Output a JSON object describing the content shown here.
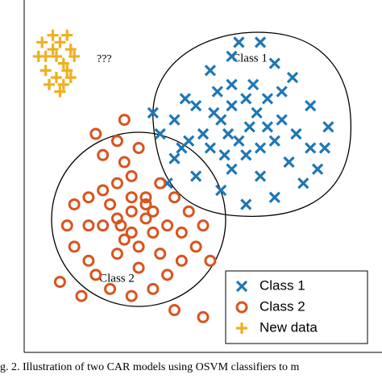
{
  "chart_data": {
    "type": "scatter",
    "annotations": {
      "class1": "Class 1",
      "class2": "Class 2",
      "unknown": "???"
    },
    "caption": "g. 2.   Illustration of two CAR models using OSVM classifiers to m",
    "xlim": [
      0,
      100
    ],
    "ylim": [
      0,
      100
    ],
    "legend": "lower right",
    "series": [
      {
        "name": "Class 1",
        "color": "#1f77b4",
        "marker": "x",
        "x": [
          45,
          52,
          58,
          60,
          66,
          70,
          75,
          80,
          85,
          84,
          82,
          78,
          70,
          62,
          55,
          48,
          42,
          38,
          36,
          42,
          50,
          55,
          58,
          62,
          65,
          68,
          60,
          56,
          52,
          62,
          66,
          70,
          72,
          64,
          58,
          54,
          48,
          46,
          76,
          74,
          66,
          58,
          40,
          44,
          68,
          63,
          57,
          53,
          72,
          80
        ],
        "y": [
          72,
          80,
          84,
          88,
          88,
          82,
          78,
          70,
          64,
          58,
          52,
          48,
          44,
          42,
          46,
          50,
          55,
          62,
          68,
          66,
          62,
          66,
          70,
          72,
          68,
          64,
          60,
          56,
          58,
          56,
          58,
          60,
          66,
          76,
          76,
          74,
          70,
          60,
          62,
          54,
          50,
          52,
          48,
          58,
          72,
          64,
          62,
          68,
          74,
          58
        ]
      },
      {
        "name": "Class 2",
        "color": "#d9541e",
        "marker": "o",
        "x": [
          20,
          22,
          26,
          28,
          32,
          30,
          26,
          22,
          18,
          14,
          12,
          14,
          18,
          20,
          24,
          30,
          36,
          40,
          44,
          48,
          50,
          46,
          42,
          38,
          34,
          30,
          26,
          22,
          28,
          32,
          36,
          40,
          34,
          30,
          26,
          32,
          38,
          44,
          24,
          18,
          10,
          16,
          42,
          50,
          52,
          28,
          34,
          36,
          30,
          27
        ],
        "y": [
          62,
          56,
          60,
          54,
          58,
          50,
          48,
          46,
          44,
          42,
          36,
          30,
          26,
          22,
          18,
          16,
          18,
          22,
          26,
          30,
          36,
          40,
          44,
          48,
          44,
          40,
          38,
          36,
          32,
          30,
          34,
          36,
          38,
          34,
          28,
          24,
          28,
          34,
          42,
          36,
          20,
          16,
          12,
          10,
          26,
          66,
          42,
          40,
          44,
          36
        ]
      },
      {
        "name": "New data",
        "color": "#edb120",
        "marker": "+",
        "x": [
          4,
          6,
          8,
          10,
          12,
          13,
          11,
          9,
          7,
          11,
          14,
          5,
          9,
          12,
          6,
          10,
          13,
          8
        ],
        "y": [
          84,
          80,
          86,
          88,
          90,
          86,
          82,
          78,
          76,
          76,
          84,
          88,
          84,
          80,
          84,
          74,
          78,
          90
        ]
      }
    ]
  }
}
